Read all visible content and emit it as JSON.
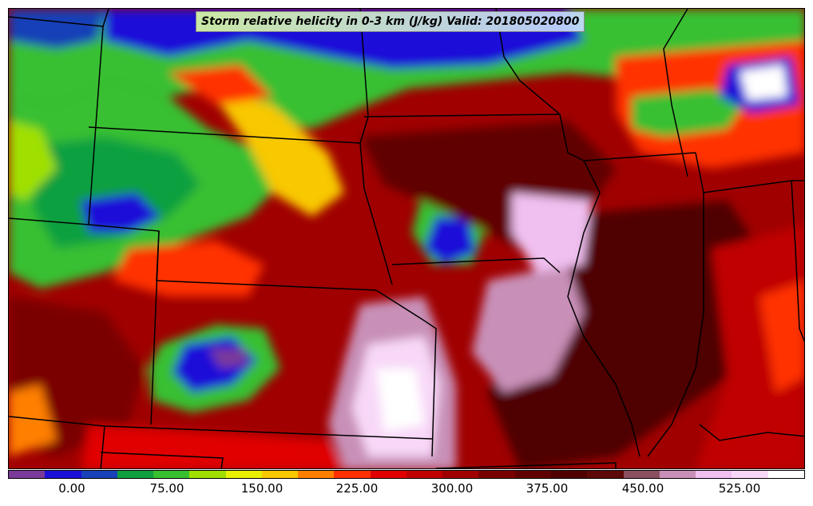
{
  "title": "Storm relative helicity in 0-3 km (J/kg) Valid: 201805020800",
  "colorbar": {
    "colors": [
      "#7a3a9a",
      "#1c10d8",
      "#1840b8",
      "#10a040",
      "#38c030",
      "#a0e000",
      "#e8f000",
      "#f8c800",
      "#ff7f00",
      "#ff3000",
      "#e00000",
      "#c00000",
      "#a00000",
      "#7a0000",
      "#600000",
      "#500000",
      "#5e0808",
      "#8a5060",
      "#c890b8",
      "#f0c0f0",
      "#f8d8f8",
      "#ffffff"
    ],
    "ticks": [
      "0.00",
      "75.00",
      "150.00",
      "225.00",
      "300.00",
      "375.00",
      "450.00",
      "525.00"
    ]
  }
}
